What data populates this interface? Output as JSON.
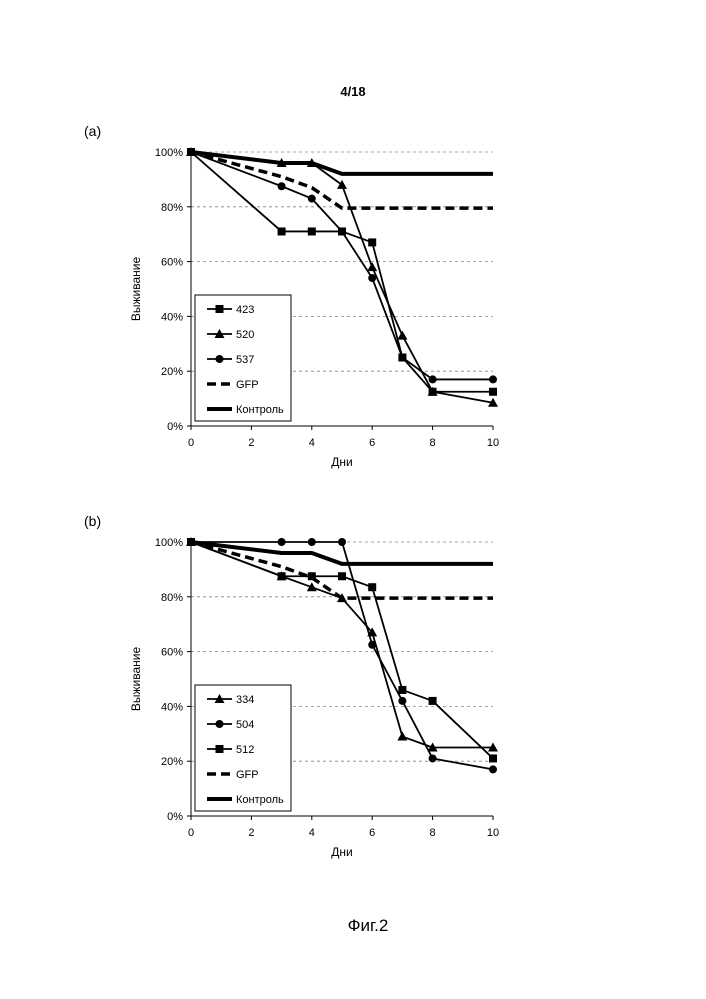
{
  "page": {
    "header": "4/18",
    "caption": "Фиг.2"
  },
  "chart_data": [
    {
      "type": "line",
      "panel_label": "(a)",
      "xlabel": "Дни",
      "ylabel": "Выживание",
      "xlim": [
        0,
        10
      ],
      "ylim": [
        0,
        100
      ],
      "x_ticks": [
        0,
        2,
        4,
        6,
        8,
        10
      ],
      "y_ticks": [
        "0%",
        "20%",
        "40%",
        "60%",
        "80%",
        "100%"
      ],
      "y_tick_values": [
        0,
        20,
        40,
        60,
        80,
        100
      ],
      "grid": "horizontal dashed",
      "legend_position": "bottom-left",
      "series": [
        {
          "name": "423",
          "marker": "square",
          "style": "solid",
          "x": [
            0,
            3,
            4,
            5,
            6,
            7,
            8,
            10
          ],
          "y": [
            100,
            71,
            71,
            71,
            67,
            25,
            12.5,
            12.5
          ]
        },
        {
          "name": "520",
          "marker": "triangle",
          "style": "solid",
          "x": [
            0,
            3,
            4,
            5,
            6,
            7,
            8,
            10
          ],
          "y": [
            100,
            96,
            96,
            88,
            58,
            33,
            12.5,
            8.5
          ]
        },
        {
          "name": "537",
          "marker": "circle",
          "style": "solid",
          "x": [
            0,
            3,
            4,
            5,
            6,
            7,
            8,
            10
          ],
          "y": [
            100,
            87.5,
            83,
            71,
            54,
            25,
            17,
            17
          ]
        },
        {
          "name": "GFP",
          "marker": "none",
          "style": "dashed",
          "x": [
            0,
            1,
            2,
            3,
            4,
            5,
            10
          ],
          "y": [
            100,
            97,
            94,
            91,
            87,
            79.5,
            79.5
          ]
        },
        {
          "name": "Контроль",
          "marker": "none",
          "style": "thick",
          "x": [
            0,
            3,
            4,
            5,
            10
          ],
          "y": [
            100,
            96,
            96,
            92,
            92
          ]
        }
      ]
    },
    {
      "type": "line",
      "panel_label": "(b)",
      "xlabel": "Дни",
      "ylabel": "Выживание",
      "xlim": [
        0,
        10
      ],
      "ylim": [
        0,
        100
      ],
      "x_ticks": [
        0,
        2,
        4,
        6,
        8,
        10
      ],
      "y_ticks": [
        "0%",
        "20%",
        "40%",
        "60%",
        "80%",
        "100%"
      ],
      "y_tick_values": [
        0,
        20,
        40,
        60,
        80,
        100
      ],
      "grid": "horizontal dashed",
      "legend_position": "bottom-left",
      "series": [
        {
          "name": "334",
          "marker": "triangle",
          "style": "solid",
          "x": [
            0,
            3,
            4,
            5,
            6,
            7,
            8,
            10
          ],
          "y": [
            100,
            87.5,
            83.5,
            79.5,
            67,
            29,
            25,
            25
          ]
        },
        {
          "name": "504",
          "marker": "circle",
          "style": "solid",
          "x": [
            0,
            3,
            4,
            5,
            6,
            7,
            8,
            10
          ],
          "y": [
            100,
            100,
            100,
            100,
            62.5,
            42,
            21,
            17
          ]
        },
        {
          "name": "512",
          "marker": "square",
          "style": "solid",
          "x": [
            0,
            3,
            4,
            5,
            6,
            7,
            8,
            10
          ],
          "y": [
            100,
            87.5,
            87.5,
            87.5,
            83.5,
            46,
            42,
            21
          ]
        },
        {
          "name": "GFP",
          "marker": "none",
          "style": "dashed",
          "x": [
            0,
            1,
            2,
            3,
            4,
            5,
            10
          ],
          "y": [
            100,
            97,
            94,
            91,
            87,
            79.5,
            79.5
          ]
        },
        {
          "name": "Контроль",
          "marker": "none",
          "style": "thick",
          "x": [
            0,
            3,
            4,
            5,
            10
          ],
          "y": [
            100,
            96,
            96,
            92,
            92
          ]
        }
      ]
    }
  ]
}
